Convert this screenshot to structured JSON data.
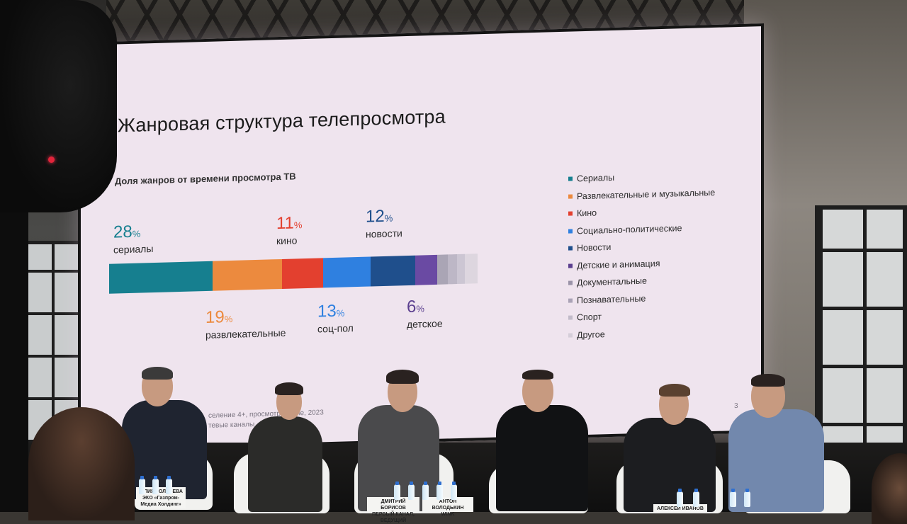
{
  "slide": {
    "title": "Жанровая структура телепросмотра",
    "subtitle": "Доля жанров от времени просмотра ТВ",
    "page_number": "3",
    "footnote_line1": "селение 4+, просмотр",
    "footnote_line2": "тевые каналы",
    "footnote_tail": "а даче, 2023"
  },
  "stats": [
    {
      "num": "28",
      "pct": "%",
      "label": "сериалы",
      "color": "#167f8f"
    },
    {
      "num": "11",
      "pct": "%",
      "label": "кино",
      "color": "#e3402f"
    },
    {
      "num": "12",
      "pct": "%",
      "label": "новости",
      "color": "#1f4f8c"
    },
    {
      "num": "19",
      "pct": "%",
      "label": "развлекательные",
      "color": "#ec8a3e"
    },
    {
      "num": "13",
      "pct": "%",
      "label": "соц-пол",
      "color": "#2f80e0"
    },
    {
      "num": "6",
      "pct": "%",
      "label": "детское",
      "color": "#5b3f8f"
    }
  ],
  "bar_segments": [
    {
      "name": "Сериалы",
      "value": 28,
      "color": "#167f8f"
    },
    {
      "name": "Развлекательные и музыкальные",
      "value": 19,
      "color": "#ec8a3e"
    },
    {
      "name": "Кино",
      "value": 11,
      "color": "#e3402f"
    },
    {
      "name": "Социально-политические",
      "value": 13,
      "color": "#2f80e0"
    },
    {
      "name": "Новости",
      "value": 12,
      "color": "#1f4f8c"
    },
    {
      "name": "Детские и анимация",
      "value": 6,
      "color": "#6a4aa3"
    },
    {
      "name": "Документальные",
      "value": 3,
      "color": "#aaa5b5"
    },
    {
      "name": "Познавательные",
      "value": 2.5,
      "color": "#bdb7c6"
    },
    {
      "name": "Спорт",
      "value": 2,
      "color": "#ccc6d3"
    },
    {
      "name": "Другое",
      "value": 3.5,
      "color": "#ddd6df"
    }
  ],
  "legend": [
    {
      "label": "Сериалы",
      "color": "#167f8f"
    },
    {
      "label": "Развлекательные и музыкальные",
      "color": "#ec8a3e"
    },
    {
      "label": "Кино",
      "color": "#e3402f"
    },
    {
      "label": "Социально-политические",
      "color": "#2f80e0"
    },
    {
      "label": "Новости",
      "color": "#1f4f8c"
    },
    {
      "label": "Детские и анимация",
      "color": "#5b3f8f"
    },
    {
      "label": "Документальные",
      "color": "#9a93a8"
    },
    {
      "label": "Познавательные",
      "color": "#aaa3b6"
    },
    {
      "label": "Спорт",
      "color": "#c2bbc9"
    },
    {
      "label": "Другое",
      "color": "#d5ced9"
    }
  ],
  "nameplates": [
    {
      "name": "ЮЛИЯ ГОЛУБЕВА",
      "org": "ЭКО «Газпром-Медиа Холдинг»"
    },
    {
      "name": "ДМИТРИЙ БОРИСОВ",
      "org": "ПЕРВЫЙ КАНАЛ, ВЕДУЩИЙ"
    },
    {
      "name": "АНТОН ВОЛОДЬКИН",
      "org": "WINK"
    },
    {
      "name": "АЛЕКСЕЙ ИВАНОВ",
      "org": ""
    }
  ]
}
